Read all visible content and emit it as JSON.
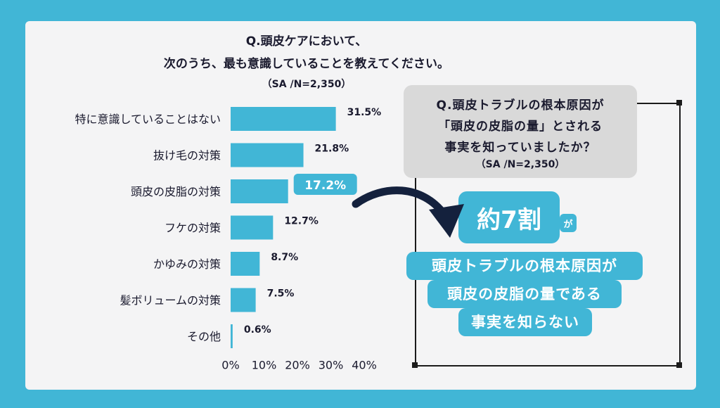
{
  "title": {
    "line1": "Q.頭皮ケアにおいて、",
    "line2": "次のうち、最も意識していることを教えてください。",
    "sample": "（SA /N=2,350）"
  },
  "chart_data": {
    "type": "bar",
    "orientation": "horizontal",
    "categories": [
      "特に意識していることはない",
      "抜け毛の対策",
      "頭皮の皮脂の対策",
      "フケの対策",
      "かゆみの対策",
      "髪ボリュームの対策",
      "その他"
    ],
    "values": [
      31.5,
      21.8,
      17.2,
      12.7,
      8.7,
      7.5,
      0.6
    ],
    "value_labels": [
      "31.5%",
      "21.8%",
      "17.2%",
      "12.7%",
      "8.7%",
      "7.5%",
      "0.6%"
    ],
    "highlight_index": 2,
    "xlim": [
      0,
      40
    ],
    "x_ticks": [
      "0%",
      "10%",
      "20%",
      "30%",
      "40%"
    ],
    "bar_color": "#41b6d6"
  },
  "callout": {
    "question_lines": [
      "Q.頭皮トラブルの根本原因が",
      "「頭皮の皮脂の量」とされる",
      "事実を知っていましたか？"
    ],
    "sample": "（SA /N=2,350）",
    "big": "約7割",
    "particle": "が",
    "answer_lines": [
      "頭皮トラブルの根本原因が",
      "頭皮の皮脂の量である",
      "事実を知らない"
    ]
  },
  "colors": {
    "accent": "#41b6d6",
    "text": "#1a1a2e",
    "card": "#f4f4f5",
    "question_box": "#d9d9d9"
  }
}
